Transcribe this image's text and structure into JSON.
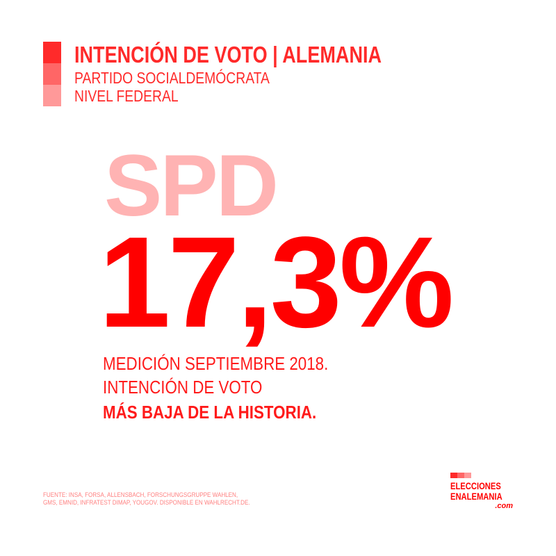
{
  "colors": {
    "accent": "#ff2a2a",
    "square_2": "#ff6666",
    "square_3": "#ff9999",
    "party": "#ffb3b3",
    "value": "#ff0000",
    "source": "#ff8080"
  },
  "header": {
    "title": "INTENCIÓN DE VOTO | ALEMANIA",
    "subtitle": "PARTIDO SOCIALDEMÓCRATA",
    "level": "NIVEL FEDERAL"
  },
  "main": {
    "party": "SPD",
    "value": "17,3%",
    "line1": "MEDICIÓN SEPTIEMBRE 2018.",
    "line2": "INTENCIÓN DE VOTO",
    "line3": "MÁS BAJA DE LA HISTORIA."
  },
  "footer": {
    "source_line1": "FUENTE: INSA, FORSA, ALLENSBACH, FORSCHUNGSGRUPPE WAHLEN,",
    "source_line2": "GMS, EMNID, INFRATEST DIMAP, YOUGOV. DISPONIBLE EN WAHLRECHT.DE."
  },
  "logo": {
    "line1": "ELECCIONES",
    "line2": "ENALEMANIA",
    "line3": ".com"
  }
}
